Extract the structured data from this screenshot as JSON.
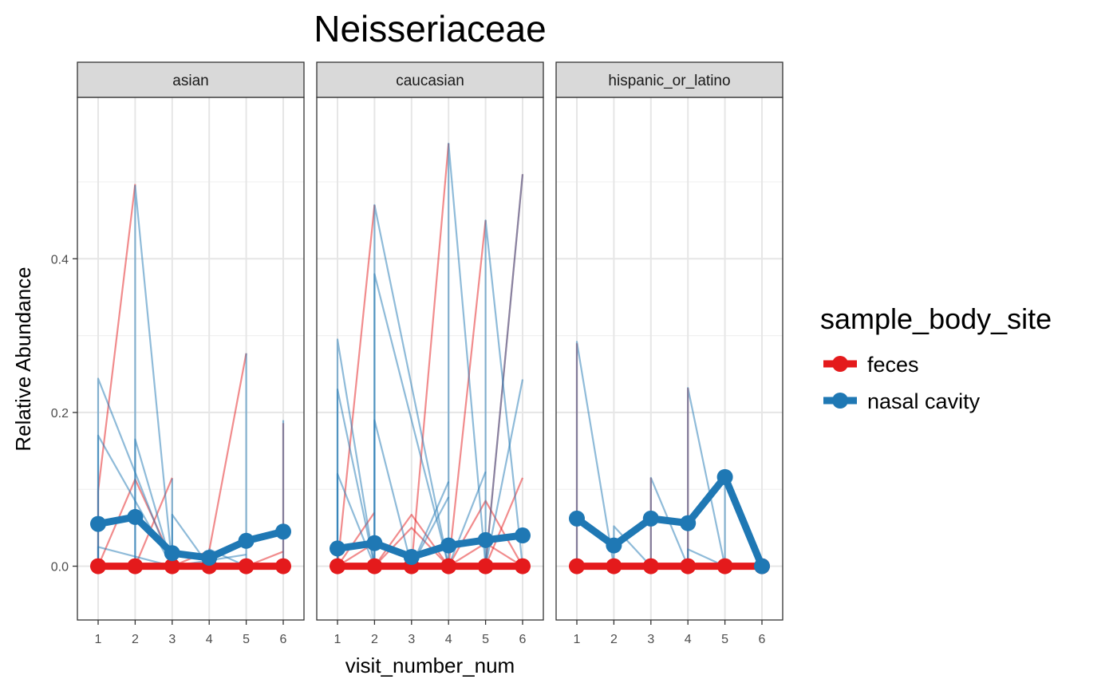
{
  "chart_data": {
    "type": "line",
    "title": "Neisseriaceae",
    "xlabel": "visit_number_num",
    "ylabel": "Relative Abundance",
    "ylim": [
      -0.07,
      0.61
    ],
    "y_ticks": [
      0.0,
      0.2,
      0.4
    ],
    "y_tick_labels": [
      "0.0",
      "0.2",
      "0.4"
    ],
    "x_ticks": [
      1,
      2,
      3,
      4,
      5,
      6
    ],
    "x_tick_labels": [
      "1",
      "2",
      "3",
      "4",
      "5",
      "6"
    ],
    "grid": true,
    "legend": {
      "title": "sample_body_site",
      "position": "right",
      "entries": [
        {
          "label": "feces",
          "color": "#E41A1C"
        },
        {
          "label": "nasal cavity",
          "color": "#1F78B4"
        }
      ]
    },
    "series_colors": {
      "feces": "#E41A1C",
      "nasal cavity": "#1F78B4"
    },
    "facets": [
      {
        "label": "asian",
        "mean_lines": {
          "feces": [
            [
              1,
              0.0
            ],
            [
              2,
              0.0
            ],
            [
              3,
              0.0
            ],
            [
              4,
              0.0
            ],
            [
              5,
              0.0
            ],
            [
              6,
              0.0
            ]
          ],
          "nasal cavity": [
            [
              1,
              0.055
            ],
            [
              2,
              0.064
            ],
            [
              3,
              0.017
            ],
            [
              4,
              0.011
            ],
            [
              5,
              0.033
            ],
            [
              6,
              0.045
            ]
          ]
        },
        "subject_lines": {
          "feces": [
            [
              [
                1,
                0.098
              ],
              [
                2,
                0.497
              ]
            ],
            [
              [
                1,
                0.0
              ],
              [
                2,
                0.113
              ],
              [
                3,
                0.008
              ]
            ],
            [
              [
                2,
                0.0
              ],
              [
                3,
                0.115
              ]
            ],
            [
              [
                3,
                0.0
              ],
              [
                4,
                0.02
              ],
              [
                5,
                0.277
              ]
            ],
            [
              [
                5,
                0.0
              ],
              [
                6,
                0.019
              ]
            ],
            [
              [
                6,
                0.186
              ]
            ]
          ],
          "nasal cavity": [
            [
              [
                1,
                0.244
              ],
              [
                3,
                0.0
              ]
            ],
            [
              [
                1,
                0.17
              ],
              [
                3,
                0.0
              ]
            ],
            [
              [
                1,
                0.025
              ],
              [
                3,
                0.0
              ],
              [
                5,
                0.015
              ]
            ],
            [
              [
                2,
                0.165
              ],
              [
                3,
                0.0
              ]
            ],
            [
              [
                2,
                0.495
              ],
              [
                3,
                0.0
              ]
            ],
            [
              [
                3,
                0.114
              ]
            ],
            [
              [
                3,
                0.067
              ],
              [
                4,
                0.0
              ]
            ],
            [
              [
                4,
                0.022
              ],
              [
                5,
                0.0
              ]
            ],
            [
              [
                5,
                0.277
              ]
            ],
            [
              [
                6,
                0.19
              ]
            ]
          ]
        }
      },
      {
        "label": "caucasian",
        "mean_lines": {
          "feces": [
            [
              1,
              0.0
            ],
            [
              2,
              0.0
            ],
            [
              3,
              0.0
            ],
            [
              4,
              0.0
            ],
            [
              5,
              0.0
            ],
            [
              6,
              0.0
            ]
          ],
          "nasal cavity": [
            [
              1,
              0.023
            ],
            [
              2,
              0.03
            ],
            [
              3,
              0.012
            ],
            [
              4,
              0.027
            ],
            [
              5,
              0.034
            ],
            [
              6,
              0.04
            ]
          ]
        },
        "subject_lines": {
          "feces": [
            [
              [
                1,
                0.0
              ],
              [
                2,
                0.47
              ]
            ],
            [
              [
                1,
                0.0
              ],
              [
                2,
                0.07
              ]
            ],
            [
              [
                1,
                0.0
              ],
              [
                2,
                0.03
              ]
            ],
            [
              [
                2,
                0.0
              ],
              [
                3,
                0.067
              ],
              [
                4,
                0.0
              ]
            ],
            [
              [
                2,
                0.0
              ],
              [
                3,
                0.05
              ],
              [
                4,
                0.0
              ]
            ],
            [
              [
                3,
                0.0
              ],
              [
                4,
                0.55
              ]
            ],
            [
              [
                4,
                0.0
              ],
              [
                5,
                0.45
              ]
            ],
            [
              [
                4,
                0.0
              ],
              [
                5,
                0.085
              ],
              [
                6,
                0.0
              ]
            ],
            [
              [
                4,
                0.0
              ],
              [
                5,
                0.03
              ],
              [
                6,
                0.0
              ]
            ],
            [
              [
                5,
                0.0
              ],
              [
                6,
                0.51
              ]
            ],
            [
              [
                5,
                0.0
              ],
              [
                6,
                0.115
              ]
            ]
          ],
          "nasal cavity": [
            [
              [
                1,
                0.295
              ],
              [
                2,
                0.0
              ]
            ],
            [
              [
                1,
                0.23
              ],
              [
                2,
                0.0
              ]
            ],
            [
              [
                1,
                0.12
              ],
              [
                2,
                0.0
              ]
            ],
            [
              [
                2,
                0.38
              ],
              [
                4,
                0.0
              ]
            ],
            [
              [
                2,
                0.47
              ],
              [
                4,
                0.0
              ]
            ],
            [
              [
                2,
                0.19
              ],
              [
                3,
                0.0
              ]
            ],
            [
              [
                3,
                0.0
              ],
              [
                4,
                0.11
              ]
            ],
            [
              [
                3,
                0.0
              ],
              [
                4,
                0.09
              ]
            ],
            [
              [
                4,
                0.55
              ],
              [
                5,
                0.0
              ]
            ],
            [
              [
                4,
                0.0
              ],
              [
                5,
                0.123
              ]
            ],
            [
              [
                5,
                0.45
              ],
              [
                6,
                0.0
              ]
            ],
            [
              [
                5,
                0.0
              ],
              [
                6,
                0.51
              ]
            ],
            [
              [
                5,
                0.0
              ],
              [
                6,
                0.243
              ]
            ]
          ]
        }
      },
      {
        "label": "hispanic_or_latino",
        "mean_lines": {
          "feces": [
            [
              1,
              0.0
            ],
            [
              2,
              0.0
            ],
            [
              3,
              0.0
            ],
            [
              4,
              0.0
            ],
            [
              5,
              0.0
            ],
            [
              6,
              0.0
            ]
          ],
          "nasal cavity": [
            [
              1,
              0.062
            ],
            [
              2,
              0.027
            ],
            [
              3,
              0.062
            ],
            [
              4,
              0.056
            ],
            [
              5,
              0.116
            ],
            [
              6,
              0.0
            ]
          ]
        },
        "subject_lines": {
          "feces": [
            [
              [
                1,
                0.29
              ]
            ],
            [
              [
                3,
                0.115
              ]
            ],
            [
              [
                4,
                0.232
              ]
            ]
          ],
          "nasal cavity": [
            [
              [
                1,
                0.292
              ],
              [
                2,
                0.0
              ]
            ],
            [
              [
                2,
                0.052
              ],
              [
                3,
                0.0
              ]
            ],
            [
              [
                3,
                0.115
              ],
              [
                4,
                0.0
              ]
            ],
            [
              [
                4,
                0.232
              ],
              [
                5,
                0.0
              ]
            ],
            [
              [
                4,
                0.022
              ],
              [
                5,
                0.0
              ]
            ],
            [
              [
                5,
                0.116
              ],
              [
                6,
                0.0
              ]
            ]
          ]
        }
      }
    ]
  }
}
